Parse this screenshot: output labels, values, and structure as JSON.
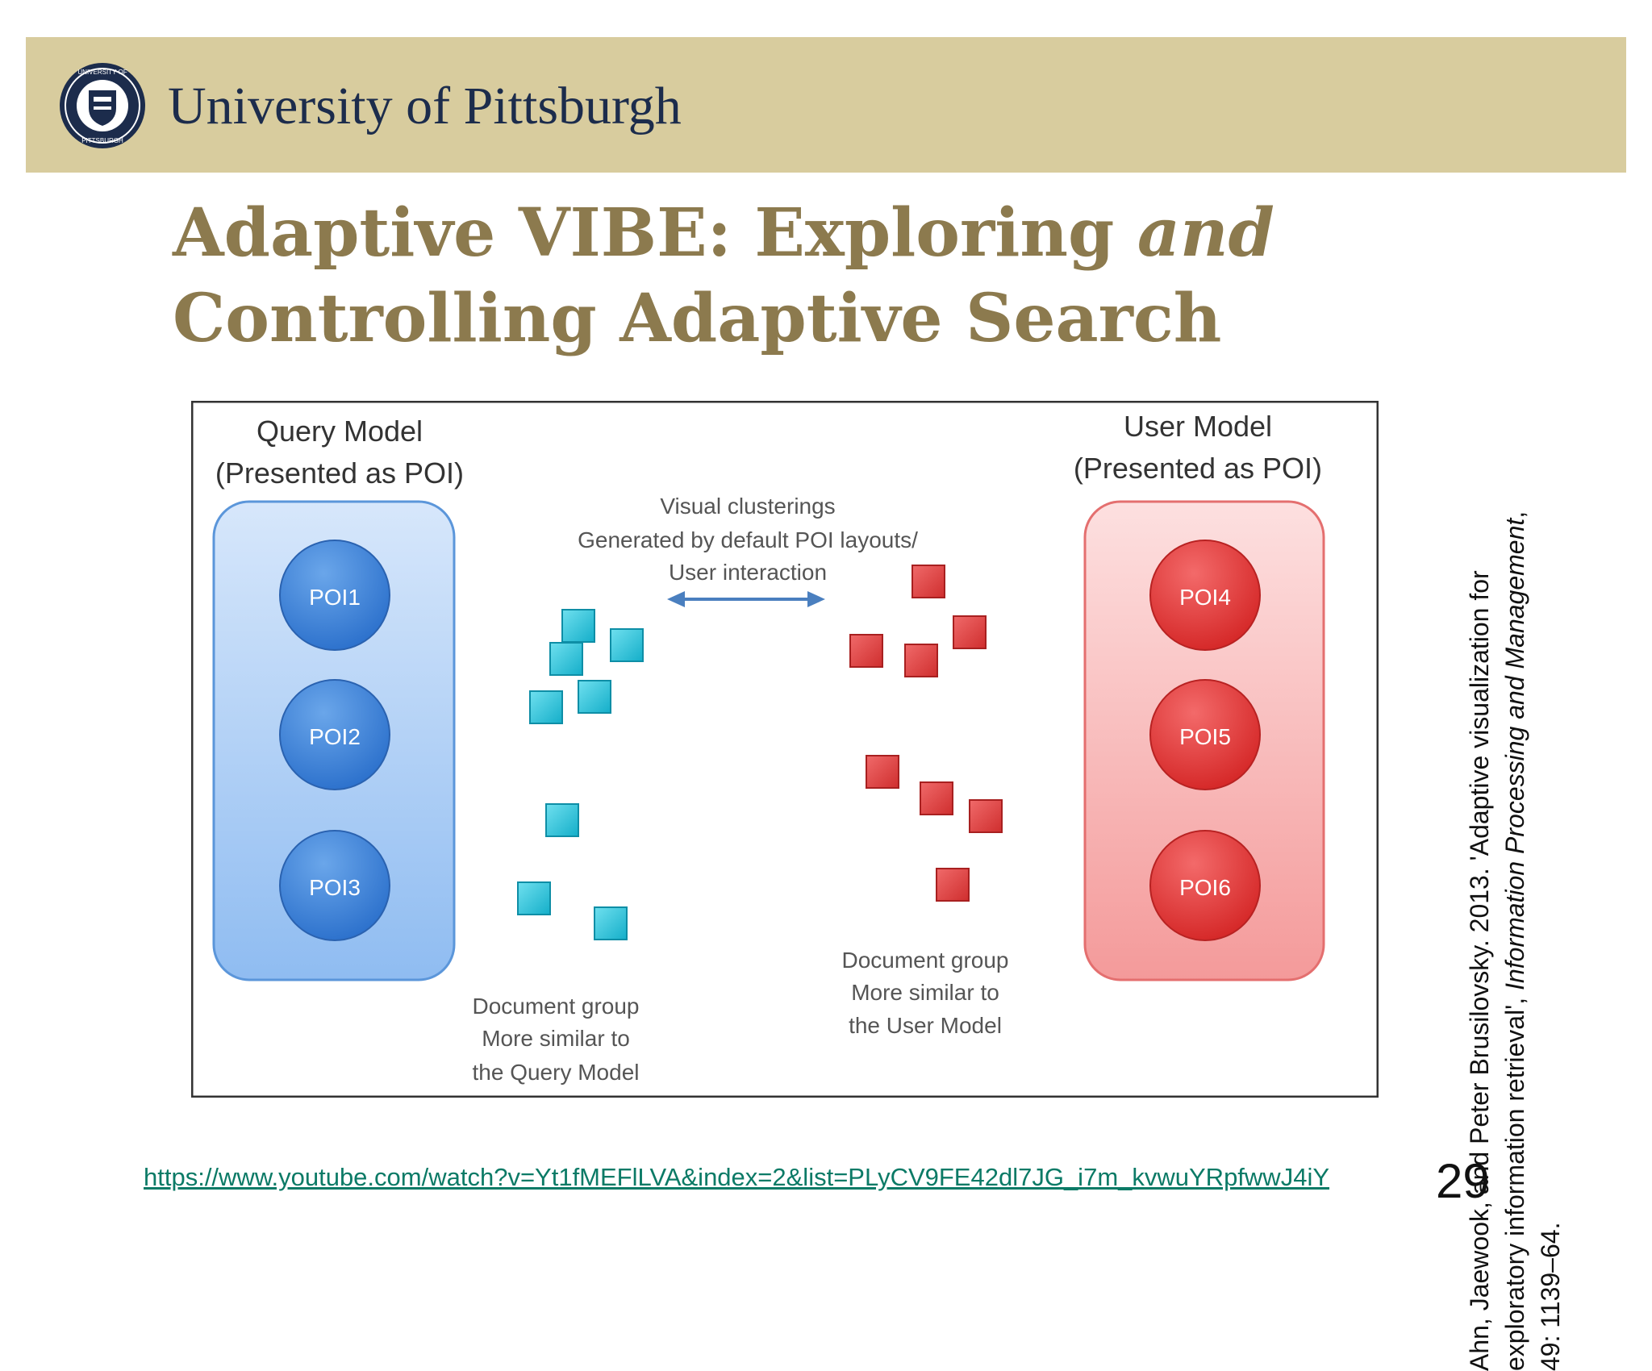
{
  "header": {
    "university_name": "University of Pittsburgh",
    "seal_alt": "university-seal"
  },
  "slide": {
    "title_line1_part1": "Adaptive VIBE: Exploring ",
    "title_line1_italic": "and",
    "title_line2": "Controlling Adaptive Search",
    "page_number": "29",
    "video_link": "https://www.youtube.com/watch?v=Yt1fMEFlLVA&index=2&list=PLyCV9FE42dl7JG_i7m_kvwuYRpfwwJ4iY"
  },
  "citation": {
    "part1": "Ahn, Jaewook, and Peter Brusilovsky. 2013. 'Adaptive visualization for exploratory information retrieval', ",
    "journal": "Information Processing and Management",
    "part2": ", 49: 1139–64."
  },
  "diagram": {
    "query_model_title": "Query Model",
    "query_model_subtitle": "(Presented as POI)",
    "user_model_title": "User Model",
    "user_model_subtitle": "(Presented as POI)",
    "center_label_1": "Visual clusterings",
    "center_label_2": "Generated by default POI layouts/",
    "center_label_3": "User interaction",
    "query_pois": [
      "POI1",
      "POI2",
      "POI3"
    ],
    "user_pois": [
      "POI4",
      "POI5",
      "POI6"
    ],
    "left_group_label_1": "Document group",
    "left_group_label_2": "More similar to",
    "left_group_label_3": "the Query Model",
    "right_group_label_1": "Document group",
    "right_group_label_2": "More similar to",
    "right_group_label_3": "the User Model",
    "colors": {
      "query_panel": "#a9ccf4",
      "poi_blue": "#3f86dc",
      "user_panel": "#f6a6a6",
      "poi_red": "#ea3b3b",
      "doc_cyan": "#22c4dc",
      "doc_red": "#e54a4a",
      "arrow": "#4a7fbf"
    }
  }
}
